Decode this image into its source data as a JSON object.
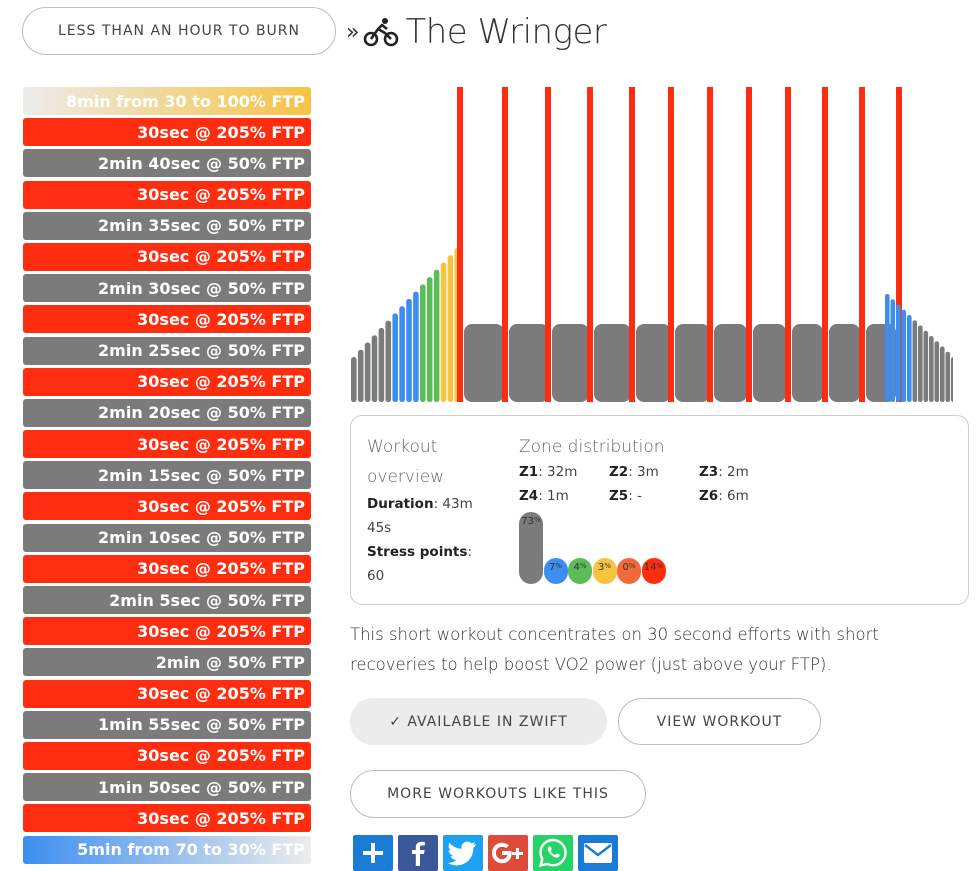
{
  "nav": {
    "back_label": "LESS THAN AN HOUR TO BURN",
    "chevron": "»"
  },
  "header": {
    "title": "The Wringer",
    "icon": "bike-icon"
  },
  "colors": {
    "grey": "#7b7b7b",
    "blue": "#3d8ef0",
    "green": "#5cbc59",
    "yellow": "#f6c343",
    "orange": "#f26a3c",
    "red": "#ff2d0f"
  },
  "intervals": [
    {
      "label": "8min from 30 to 100% FTP",
      "kind": "warmup"
    },
    {
      "label": "30sec @ 205% FTP",
      "kind": "z6"
    },
    {
      "label": "2min 40sec @ 50% FTP",
      "kind": "z1"
    },
    {
      "label": "30sec @ 205% FTP",
      "kind": "z6"
    },
    {
      "label": "2min 35sec @ 50% FTP",
      "kind": "z1"
    },
    {
      "label": "30sec @ 205% FTP",
      "kind": "z6"
    },
    {
      "label": "2min 30sec @ 50% FTP",
      "kind": "z1"
    },
    {
      "label": "30sec @ 205% FTP",
      "kind": "z6"
    },
    {
      "label": "2min 25sec @ 50% FTP",
      "kind": "z1"
    },
    {
      "label": "30sec @ 205% FTP",
      "kind": "z6"
    },
    {
      "label": "2min 20sec @ 50% FTP",
      "kind": "z1"
    },
    {
      "label": "30sec @ 205% FTP",
      "kind": "z6"
    },
    {
      "label": "2min 15sec @ 50% FTP",
      "kind": "z1"
    },
    {
      "label": "30sec @ 205% FTP",
      "kind": "z6"
    },
    {
      "label": "2min 10sec @ 50% FTP",
      "kind": "z1"
    },
    {
      "label": "30sec @ 205% FTP",
      "kind": "z6"
    },
    {
      "label": "2min 5sec @ 50% FTP",
      "kind": "z1"
    },
    {
      "label": "30sec @ 205% FTP",
      "kind": "z6"
    },
    {
      "label": "2min @ 50% FTP",
      "kind": "z1"
    },
    {
      "label": "30sec @ 205% FTP",
      "kind": "z6"
    },
    {
      "label": "1min 55sec @ 50% FTP",
      "kind": "z1"
    },
    {
      "label": "30sec @ 205% FTP",
      "kind": "z6"
    },
    {
      "label": "1min 50sec @ 50% FTP",
      "kind": "z1"
    },
    {
      "label": "30sec @ 205% FTP",
      "kind": "z6"
    },
    {
      "label": "5min from 70 to 30% FTP",
      "kind": "cooldown"
    }
  ],
  "overview": {
    "heading": "Workout overview",
    "duration_label": "Duration",
    "duration_value": "43m 45s",
    "stress_label": "Stress points",
    "stress_value": "60"
  },
  "zones": {
    "heading": "Zone distribution",
    "items": [
      {
        "label": "Z1",
        "value": "32m"
      },
      {
        "label": "Z2",
        "value": "3m"
      },
      {
        "label": "Z3",
        "value": "2m"
      },
      {
        "label": "Z4",
        "value": "1m"
      },
      {
        "label": "Z5",
        "value": "-"
      },
      {
        "label": "Z6",
        "value": "6m"
      }
    ],
    "percentages": [
      {
        "zone": "Z1",
        "value": "73",
        "color": "#7b7b7b"
      },
      {
        "zone": "Z2",
        "value": "7",
        "color": "#3d8ef0"
      },
      {
        "zone": "Z3",
        "value": "4",
        "color": "#5cbc59"
      },
      {
        "zone": "Z4",
        "value": "3",
        "color": "#f6c343"
      },
      {
        "zone": "Z5",
        "value": "0",
        "color": "#f26a3c"
      },
      {
        "zone": "Z6",
        "value": "14",
        "color": "#ff2d0f"
      }
    ]
  },
  "description": "This short workout concentrates on 30 second efforts with short recoveries to help boost VO2 power (just above your FTP).",
  "buttons": {
    "zwift_label": "✓ AVAILABLE IN ZWIFT",
    "view_label": "VIEW WORKOUT",
    "more_label": "MORE WORKOUTS LIKE THIS"
  },
  "share": [
    {
      "name": "share-plus-icon",
      "color": "#1a7bd6"
    },
    {
      "name": "facebook-icon",
      "color": "#3b5998"
    },
    {
      "name": "twitter-icon",
      "color": "#1da1f2"
    },
    {
      "name": "google-plus-icon",
      "color": "#dd4b39"
    },
    {
      "name": "whatsapp-icon",
      "color": "#25d366"
    },
    {
      "name": "email-icon",
      "color": "#1a7bd6"
    }
  ]
}
